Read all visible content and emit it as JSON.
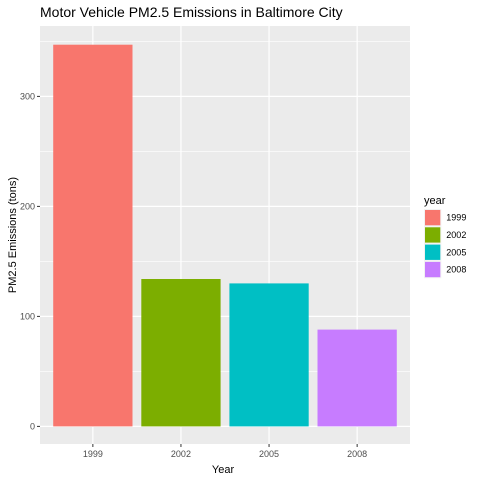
{
  "chart_data": {
    "type": "bar",
    "title": "Motor Vehicle PM2.5 Emissions in Baltimore City",
    "xlabel": "Year",
    "ylabel": "PM2.5 Emissions (tons)",
    "categories": [
      "1999",
      "2002",
      "2005",
      "2008"
    ],
    "values": [
      347,
      134,
      130,
      88
    ],
    "colors": [
      "#F8766D",
      "#7CAE00",
      "#00BFC4",
      "#C77CFF"
    ],
    "ylim": [
      -16,
      364
    ],
    "yticks": [
      0,
      100,
      200,
      300
    ],
    "ytick_labels": [
      "0",
      "100",
      "200",
      "300"
    ],
    "grid": true,
    "panel_background": "#EBEBEB",
    "legend": {
      "title": "year",
      "position": "right",
      "entries": [
        "1999",
        "2002",
        "2005",
        "2008"
      ]
    }
  }
}
